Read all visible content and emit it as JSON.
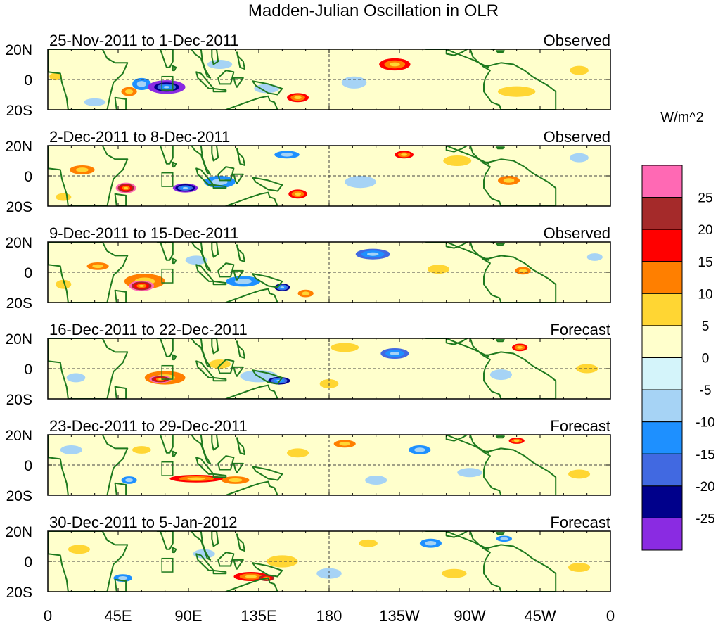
{
  "chart_data": {
    "type": "heatmap",
    "title": "Madden-Julian Oscillation in OLR",
    "units_label": "W/m^2",
    "x_axis": {
      "ticks": [
        {
          "lon": 0,
          "label": "0"
        },
        {
          "lon": 45,
          "label": "45E"
        },
        {
          "lon": 90,
          "label": "90E"
        },
        {
          "lon": 135,
          "label": "135E"
        },
        {
          "lon": 180,
          "label": "180"
        },
        {
          "lon": 225,
          "label": "135W"
        },
        {
          "lon": 270,
          "label": "90W"
        },
        {
          "lon": 315,
          "label": "45W"
        },
        {
          "lon": 360,
          "label": "0"
        }
      ],
      "range": [
        0,
        360
      ]
    },
    "y_axis": {
      "ticks": [
        {
          "lat": 20,
          "label": "20N"
        },
        {
          "lat": 0,
          "label": "0"
        },
        {
          "lat": -20,
          "label": "20S"
        }
      ],
      "range": [
        -20,
        20
      ]
    },
    "colorbar": {
      "colors": [
        "#ff69b4",
        "#a52a2a",
        "#ff0000",
        "#ff7f00",
        "#ffd633",
        "#ffffcc",
        "#d4f4fa",
        "#a6d3f5",
        "#1e90ff",
        "#4169e1",
        "#00008b",
        "#8a2be2"
      ],
      "labels": [
        "25",
        "20",
        "15",
        "10",
        "5",
        "0",
        "-5",
        "-10",
        "-15",
        "-20",
        "-25"
      ]
    },
    "panels": [
      {
        "date_range": "25-Nov-2011 to 1-Dec-2011",
        "status": "Observed",
        "anomalies": [
          {
            "lon": 76,
            "lat": -5,
            "w": 24,
            "h": 9,
            "v": -32
          },
          {
            "lon": 60,
            "lat": -3,
            "w": 12,
            "h": 8,
            "v": -10
          },
          {
            "lon": 52,
            "lat": -8,
            "w": 10,
            "h": 6,
            "v": 10
          },
          {
            "lon": 5,
            "lat": 2,
            "w": 8,
            "h": 5,
            "v": 8
          },
          {
            "lon": 160,
            "lat": -12,
            "w": 14,
            "h": 6,
            "v": 18
          },
          {
            "lon": 140,
            "lat": -6,
            "w": 16,
            "h": 6,
            "v": -8
          },
          {
            "lon": 222,
            "lat": 10,
            "w": 20,
            "h": 8,
            "v": 17
          },
          {
            "lon": 196,
            "lat": -2,
            "w": 16,
            "h": 8,
            "v": -6
          },
          {
            "lon": 300,
            "lat": -8,
            "w": 24,
            "h": 7,
            "v": 5
          },
          {
            "lon": 340,
            "lat": 6,
            "w": 12,
            "h": 6,
            "v": 5
          },
          {
            "lon": 110,
            "lat": 10,
            "w": 16,
            "h": 6,
            "v": -6
          },
          {
            "lon": 30,
            "lat": -15,
            "w": 14,
            "h": 5,
            "v": -6
          }
        ]
      },
      {
        "date_range": "2-Dec-2011 to 8-Dec-2011",
        "status": "Observed",
        "anomalies": [
          {
            "lon": 50,
            "lat": -8,
            "w": 13,
            "h": 7,
            "v": 27
          },
          {
            "lon": 22,
            "lat": 4,
            "w": 16,
            "h": 6,
            "v": 14
          },
          {
            "lon": 88,
            "lat": -8,
            "w": 16,
            "h": 6,
            "v": -26
          },
          {
            "lon": 110,
            "lat": -4,
            "w": 20,
            "h": 8,
            "v": -10
          },
          {
            "lon": 160,
            "lat": -12,
            "w": 12,
            "h": 6,
            "v": 16
          },
          {
            "lon": 153,
            "lat": 14,
            "w": 16,
            "h": 5,
            "v": -14
          },
          {
            "lon": 228,
            "lat": 14,
            "w": 12,
            "h": 5,
            "v": 16
          },
          {
            "lon": 262,
            "lat": 10,
            "w": 18,
            "h": 7,
            "v": 7
          },
          {
            "lon": 295,
            "lat": -3,
            "w": 14,
            "h": 6,
            "v": 12
          },
          {
            "lon": 200,
            "lat": -4,
            "w": 20,
            "h": 8,
            "v": -5
          },
          {
            "lon": 340,
            "lat": 12,
            "w": 12,
            "h": 6,
            "v": -5
          },
          {
            "lon": 10,
            "lat": -14,
            "w": 10,
            "h": 5,
            "v": 6
          }
        ]
      },
      {
        "date_range": "9-Dec-2011 to 15-Dec-2011",
        "status": "Observed",
        "anomalies": [
          {
            "lon": 60,
            "lat": -9,
            "w": 16,
            "h": 7,
            "v": 28
          },
          {
            "lon": 62,
            "lat": -6,
            "w": 26,
            "h": 10,
            "v": 12
          },
          {
            "lon": 32,
            "lat": 4,
            "w": 14,
            "h": 5,
            "v": 14
          },
          {
            "lon": 125,
            "lat": -6,
            "w": 22,
            "h": 7,
            "v": -12
          },
          {
            "lon": 150,
            "lat": -10,
            "w": 10,
            "h": 5,
            "v": -20
          },
          {
            "lon": 165,
            "lat": -14,
            "w": 10,
            "h": 5,
            "v": 13
          },
          {
            "lon": 208,
            "lat": 12,
            "w": 22,
            "h": 7,
            "v": -16
          },
          {
            "lon": 250,
            "lat": 2,
            "w": 14,
            "h": 6,
            "v": 5
          },
          {
            "lon": 304,
            "lat": 1,
            "w": 10,
            "h": 5,
            "v": 12
          },
          {
            "lon": 350,
            "lat": 10,
            "w": 10,
            "h": 5,
            "v": -7
          },
          {
            "lon": 95,
            "lat": 8,
            "w": 14,
            "h": 6,
            "v": -6
          },
          {
            "lon": 10,
            "lat": -8,
            "w": 10,
            "h": 6,
            "v": 6
          }
        ]
      },
      {
        "date_range": "16-Dec-2011 to 22-Dec-2011",
        "status": "Forecast",
        "anomalies": [
          {
            "lon": 72,
            "lat": -7,
            "w": 14,
            "h": 5,
            "v": 27
          },
          {
            "lon": 75,
            "lat": -6,
            "w": 26,
            "h": 9,
            "v": 12
          },
          {
            "lon": 148,
            "lat": -8,
            "w": 14,
            "h": 5,
            "v": -22
          },
          {
            "lon": 135,
            "lat": -5,
            "w": 24,
            "h": 8,
            "v": -8
          },
          {
            "lon": 110,
            "lat": 3,
            "w": 14,
            "h": 6,
            "v": 8
          },
          {
            "lon": 222,
            "lat": 10,
            "w": 18,
            "h": 7,
            "v": -18
          },
          {
            "lon": 190,
            "lat": 14,
            "w": 18,
            "h": 6,
            "v": 6
          },
          {
            "lon": 302,
            "lat": 14,
            "w": 10,
            "h": 5,
            "v": 18
          },
          {
            "lon": 290,
            "lat": -4,
            "w": 14,
            "h": 7,
            "v": -7
          },
          {
            "lon": 18,
            "lat": -6,
            "w": 12,
            "h": 6,
            "v": -8
          },
          {
            "lon": 180,
            "lat": -10,
            "w": 12,
            "h": 6,
            "v": 6
          },
          {
            "lon": 345,
            "lat": 0,
            "w": 14,
            "h": 6,
            "v": 5
          }
        ]
      },
      {
        "date_range": "23-Dec-2011 to 29-Dec-2011",
        "status": "Forecast",
        "anomalies": [
          {
            "lon": 95,
            "lat": -9,
            "w": 34,
            "h": 5,
            "v": 18
          },
          {
            "lon": 120,
            "lat": -10,
            "w": 18,
            "h": 5,
            "v": 11
          },
          {
            "lon": 52,
            "lat": -10,
            "w": 10,
            "h": 5,
            "v": -14
          },
          {
            "lon": 190,
            "lat": 14,
            "w": 14,
            "h": 5,
            "v": 10
          },
          {
            "lon": 160,
            "lat": 8,
            "w": 14,
            "h": 6,
            "v": 8
          },
          {
            "lon": 238,
            "lat": 10,
            "w": 14,
            "h": 6,
            "v": -10
          },
          {
            "lon": 300,
            "lat": 16,
            "w": 10,
            "h": 4,
            "v": 17
          },
          {
            "lon": 210,
            "lat": -10,
            "w": 14,
            "h": 6,
            "v": -6
          },
          {
            "lon": 15,
            "lat": 10,
            "w": 14,
            "h": 6,
            "v": -7
          },
          {
            "lon": 340,
            "lat": -6,
            "w": 14,
            "h": 6,
            "v": 6
          },
          {
            "lon": 270,
            "lat": -5,
            "w": 16,
            "h": 6,
            "v": -6
          },
          {
            "lon": 60,
            "lat": 10,
            "w": 12,
            "h": 5,
            "v": 5
          }
        ]
      },
      {
        "date_range": "30-Dec-2011 to 5-Jan-2012",
        "status": "Forecast",
        "anomalies": [
          {
            "lon": 130,
            "lat": -10,
            "w": 22,
            "h": 6,
            "v": 15
          },
          {
            "lon": 140,
            "lat": -11,
            "w": 10,
            "h": 4,
            "v": 22
          },
          {
            "lon": 150,
            "lat": 0,
            "w": 20,
            "h": 8,
            "v": 7
          },
          {
            "lon": 48,
            "lat": -11,
            "w": 12,
            "h": 5,
            "v": -14
          },
          {
            "lon": 20,
            "lat": 8,
            "w": 14,
            "h": 6,
            "v": 7
          },
          {
            "lon": 205,
            "lat": 12,
            "w": 12,
            "h": 5,
            "v": 7
          },
          {
            "lon": 245,
            "lat": 12,
            "w": 14,
            "h": 6,
            "v": -10
          },
          {
            "lon": 292,
            "lat": 15,
            "w": 10,
            "h": 4,
            "v": -12
          },
          {
            "lon": 180,
            "lat": -8,
            "w": 16,
            "h": 7,
            "v": -6
          },
          {
            "lon": 100,
            "lat": 5,
            "w": 14,
            "h": 6,
            "v": -5
          },
          {
            "lon": 340,
            "lat": -4,
            "w": 14,
            "h": 6,
            "v": 6
          },
          {
            "lon": 260,
            "lat": -8,
            "w": 16,
            "h": 6,
            "v": 5
          }
        ]
      }
    ]
  }
}
